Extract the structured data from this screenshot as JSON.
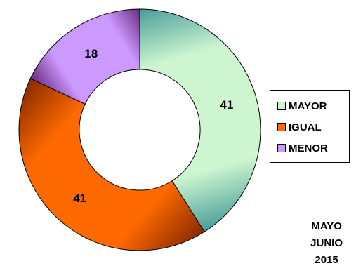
{
  "chart_data": {
    "type": "pie",
    "categories": [
      "MAYOR",
      "IGUAL",
      "MENOR"
    ],
    "values": [
      41,
      41,
      18
    ],
    "data_labels": [
      "41",
      "41",
      "18"
    ],
    "colors": [
      "#ccf5d0",
      "#ff6a00",
      "#cc99ff"
    ],
    "edge_colors": [
      "#4a9e9a",
      "#8a2a00",
      "#6a2a80"
    ],
    "donut": true,
    "legend_placement": "right"
  },
  "footer": {
    "line1": "MAYO",
    "line2": "JUNIO",
    "line3": "2015"
  }
}
